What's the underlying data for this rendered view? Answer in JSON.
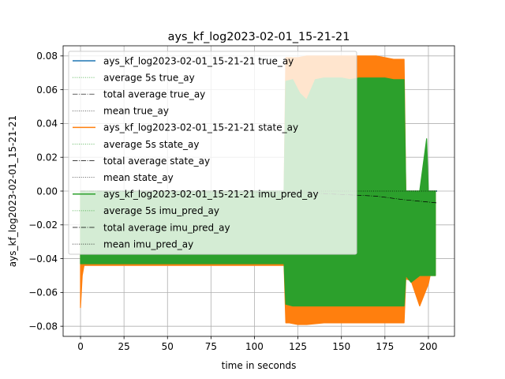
{
  "chart_data": {
    "type": "line",
    "title": "ays_kf_log2023-02-01_15-21-21",
    "xlabel": "time in seconds",
    "ylabel": "ays_kf_log2023-02-01_15-21-21",
    "xlim": [
      -10,
      215
    ],
    "ylim": [
      -0.086,
      0.086
    ],
    "x_ticks": [
      0,
      25,
      50,
      75,
      100,
      125,
      150,
      175,
      200
    ],
    "y_ticks": [
      -0.08,
      -0.06,
      -0.04,
      -0.02,
      0.0,
      0.02,
      0.04,
      0.06,
      0.08
    ],
    "x_tick_labels": [
      "0",
      "25",
      "50",
      "75",
      "100",
      "125",
      "150",
      "175",
      "200"
    ],
    "y_tick_labels": [
      "−0.08",
      "−0.06",
      "−0.04",
      "−0.02",
      "0.00",
      "0.02",
      "0.04",
      "0.06",
      "0.08"
    ],
    "grid": true,
    "legend_position": "upper-left",
    "series": [
      {
        "name": "ays_kf_log2023-02-01_15-21-21 true_ay",
        "style": "solid",
        "color": "#1f77b4",
        "x": [
          0,
          205
        ],
        "y": [
          0.0,
          0.0
        ]
      },
      {
        "name": "average 5s true_ay",
        "style": "dotted",
        "color": "#2ca02c",
        "x": [
          0,
          205
        ],
        "y": [
          0.0,
          0.0
        ]
      },
      {
        "name": "total average true_ay",
        "style": "dashdot",
        "color": "#000000",
        "x": [
          0,
          205
        ],
        "y": [
          0.0,
          0.0
        ]
      },
      {
        "name": "mean true_ay",
        "style": "dotted",
        "color": "#000000",
        "x": [
          0,
          205
        ],
        "y": [
          0.0,
          0.0
        ]
      },
      {
        "name": "ays_kf_log2023-02-01_15-21-21 state_ay",
        "style": "solid",
        "color": "#ff7f0e",
        "envelope": {
          "x": [
            0,
            1,
            2,
            20,
            40,
            60,
            80,
            100,
            117,
            118,
            120,
            125,
            130,
            140,
            150,
            160,
            170,
            180,
            186,
            187,
            190,
            195,
            200,
            201,
            204
          ],
          "max": [
            0.0,
            0.0,
            0.0,
            0.0,
            0.0,
            0.0,
            0.0,
            0.0,
            0.0,
            0.079,
            0.079,
            0.079,
            0.08,
            0.08,
            0.08,
            0.08,
            0.08,
            0.078,
            0.078,
            0.0,
            0.0,
            0.0,
            0.0,
            0.0,
            0.0
          ],
          "min": [
            -0.069,
            -0.05,
            -0.044,
            -0.044,
            -0.044,
            -0.044,
            -0.044,
            -0.044,
            -0.044,
            -0.078,
            -0.078,
            -0.079,
            -0.079,
            -0.078,
            -0.078,
            -0.078,
            -0.078,
            -0.078,
            -0.078,
            -0.052,
            -0.053,
            -0.068,
            -0.055,
            -0.05,
            -0.05
          ]
        }
      },
      {
        "name": "average 5s state_ay",
        "style": "dotted",
        "color": "#2ca02c",
        "x": [
          0,
          205
        ],
        "y": [
          0.0,
          0.0
        ]
      },
      {
        "name": "total average state_ay",
        "style": "dashdot",
        "color": "#000000",
        "x": [
          0,
          205
        ],
        "y": [
          0.0,
          0.0
        ]
      },
      {
        "name": "mean state_ay",
        "style": "dotted",
        "color": "#000000",
        "x": [
          0,
          205
        ],
        "y": [
          0.0,
          0.0
        ]
      },
      {
        "name": "ays_kf_log2023-02-01_15-21-21 imu_pred_ay",
        "style": "solid",
        "color": "#2ca02c",
        "envelope": {
          "x": [
            0,
            5,
            20,
            40,
            60,
            80,
            100,
            117,
            118,
            122,
            126,
            130,
            135,
            140,
            145,
            150,
            155,
            160,
            165,
            170,
            175,
            180,
            186,
            187,
            190,
            195,
            199,
            200,
            204
          ],
          "max": [
            0.0,
            0.0,
            0.0,
            0.0,
            0.0,
            0.0,
            0.0,
            0.0,
            0.065,
            0.066,
            0.058,
            0.054,
            0.066,
            0.067,
            0.067,
            0.067,
            0.066,
            0.067,
            0.067,
            0.067,
            0.067,
            0.066,
            0.066,
            0.0,
            0.0,
            0.0,
            0.031,
            0.0,
            0.0
          ],
          "min": [
            -0.043,
            -0.043,
            -0.043,
            -0.043,
            -0.043,
            -0.043,
            -0.043,
            -0.043,
            -0.067,
            -0.068,
            -0.068,
            -0.068,
            -0.068,
            -0.068,
            -0.068,
            -0.068,
            -0.068,
            -0.068,
            -0.068,
            -0.068,
            -0.068,
            -0.068,
            -0.068,
            -0.05,
            -0.054,
            -0.05,
            -0.05,
            -0.05,
            -0.05
          ]
        }
      },
      {
        "name": "average 5s imu_pred_ay",
        "style": "dotted",
        "color": "#2ca02c",
        "x": [
          0,
          205
        ],
        "y": [
          0.0,
          0.0
        ]
      },
      {
        "name": "total average imu_pred_ay",
        "style": "dashdot",
        "color": "#000000",
        "x": [
          0,
          130,
          150,
          170,
          185,
          205
        ],
        "y": [
          0.0,
          -0.001,
          -0.002,
          -0.003,
          -0.005,
          -0.007
        ]
      },
      {
        "name": "mean imu_pred_ay",
        "style": "dotted",
        "color": "#000000",
        "x": [
          0,
          205
        ],
        "y": [
          0.0,
          0.0
        ]
      }
    ]
  }
}
